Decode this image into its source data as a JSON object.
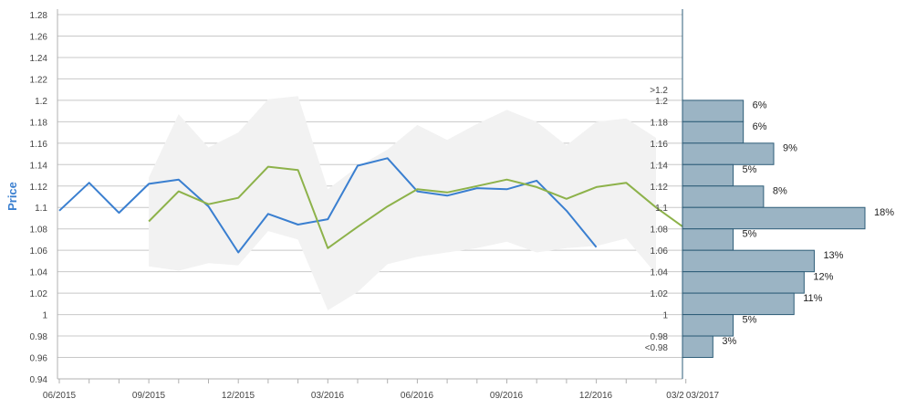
{
  "chart_data": {
    "type": "line",
    "ylabel": "Price",
    "ylim": [
      0.94,
      1.28
    ],
    "grid": true,
    "y_ticks": [
      "0.94",
      "0.96",
      "0.98",
      "1",
      "1.02",
      "1.04",
      "1.06",
      "1.08",
      "1.1",
      "1.12",
      "1.14",
      "1.16",
      "1.18",
      "1.2",
      "1.22",
      "1.24",
      "1.26",
      "1.28"
    ],
    "x_ticks": [
      "06/2015",
      "09/2015",
      "12/2015",
      "03/2016",
      "06/2016",
      "09/2016",
      "12/2016",
      "03/2",
      "03/2017"
    ],
    "x_months": [
      "2015-06",
      "2015-07",
      "2015-08",
      "2015-09",
      "2015-10",
      "2015-11",
      "2015-12",
      "2016-01",
      "2016-02",
      "2016-03",
      "2016-04",
      "2016-05",
      "2016-06",
      "2016-07",
      "2016-08",
      "2016-09",
      "2016-10",
      "2016-11",
      "2016-12",
      "2017-01",
      "2017-02",
      "2017-03"
    ],
    "colors": {
      "actual": "#3a7fd0",
      "forecast": "#8db24a",
      "band": "#f2f2f2",
      "histogram": "#9bb4c4",
      "histogram_border": "#2e5d78"
    },
    "series": [
      {
        "key": "actual",
        "values": [
          1.097,
          1.123,
          1.095,
          1.122,
          1.126,
          1.101,
          1.058,
          1.094,
          1.084,
          1.089,
          1.139,
          1.146,
          1.115,
          1.111,
          1.118,
          1.117,
          1.125,
          1.097,
          1.063,
          null,
          null,
          null
        ]
      },
      {
        "key": "forecast",
        "values": [
          null,
          null,
          null,
          1.087,
          1.115,
          1.103,
          1.109,
          1.138,
          1.135,
          1.062,
          1.082,
          1.101,
          1.117,
          1.114,
          1.12,
          1.126,
          1.119,
          1.108,
          1.119,
          1.123,
          1.1,
          1.08
        ]
      }
    ],
    "band": {
      "upper": [
        null,
        null,
        null,
        1.128,
        1.187,
        1.156,
        1.17,
        1.201,
        1.204,
        1.117,
        1.138,
        1.154,
        1.177,
        1.163,
        1.178,
        1.191,
        1.18,
        1.158,
        1.18,
        1.183,
        1.165,
        null
      ],
      "lower": [
        null,
        null,
        null,
        1.045,
        1.041,
        1.048,
        1.046,
        1.078,
        1.07,
        1.004,
        1.021,
        1.047,
        1.054,
        1.058,
        1.062,
        1.068,
        1.058,
        1.062,
        1.064,
        1.071,
        1.038,
        null
      ]
    },
    "histogram": {
      "labels": [
        ">1.2",
        "1.2",
        "1.18",
        "1.16",
        "1.14",
        "1.12",
        "1.1",
        "1.08",
        "1.06",
        "1.04",
        "1.02",
        "1",
        "0.98",
        "<0.98"
      ],
      "bins": [
        {
          "from": 1.18,
          "to": 1.2,
          "percent": 6,
          "label": "6%"
        },
        {
          "from": 1.16,
          "to": 1.18,
          "percent": 6,
          "label": "6%"
        },
        {
          "from": 1.14,
          "to": 1.16,
          "percent": 9,
          "label": "9%"
        },
        {
          "from": 1.12,
          "to": 1.14,
          "percent": 5,
          "label": "5%"
        },
        {
          "from": 1.1,
          "to": 1.12,
          "percent": 8,
          "label": "8%"
        },
        {
          "from": 1.08,
          "to": 1.1,
          "percent": 18,
          "label": "18%"
        },
        {
          "from": 1.06,
          "to": 1.08,
          "percent": 5,
          "label": "5%"
        },
        {
          "from": 1.04,
          "to": 1.06,
          "percent": 13,
          "label": "13%"
        },
        {
          "from": 1.02,
          "to": 1.04,
          "percent": 12,
          "label": "12%"
        },
        {
          "from": 1.0,
          "to": 1.02,
          "percent": 11,
          "label": "11%"
        },
        {
          "from": 0.98,
          "to": 1.0,
          "percent": 5,
          "label": "5%"
        },
        {
          "from": 0.96,
          "to": 0.98,
          "percent": 3,
          "label": "3%"
        }
      ]
    }
  }
}
